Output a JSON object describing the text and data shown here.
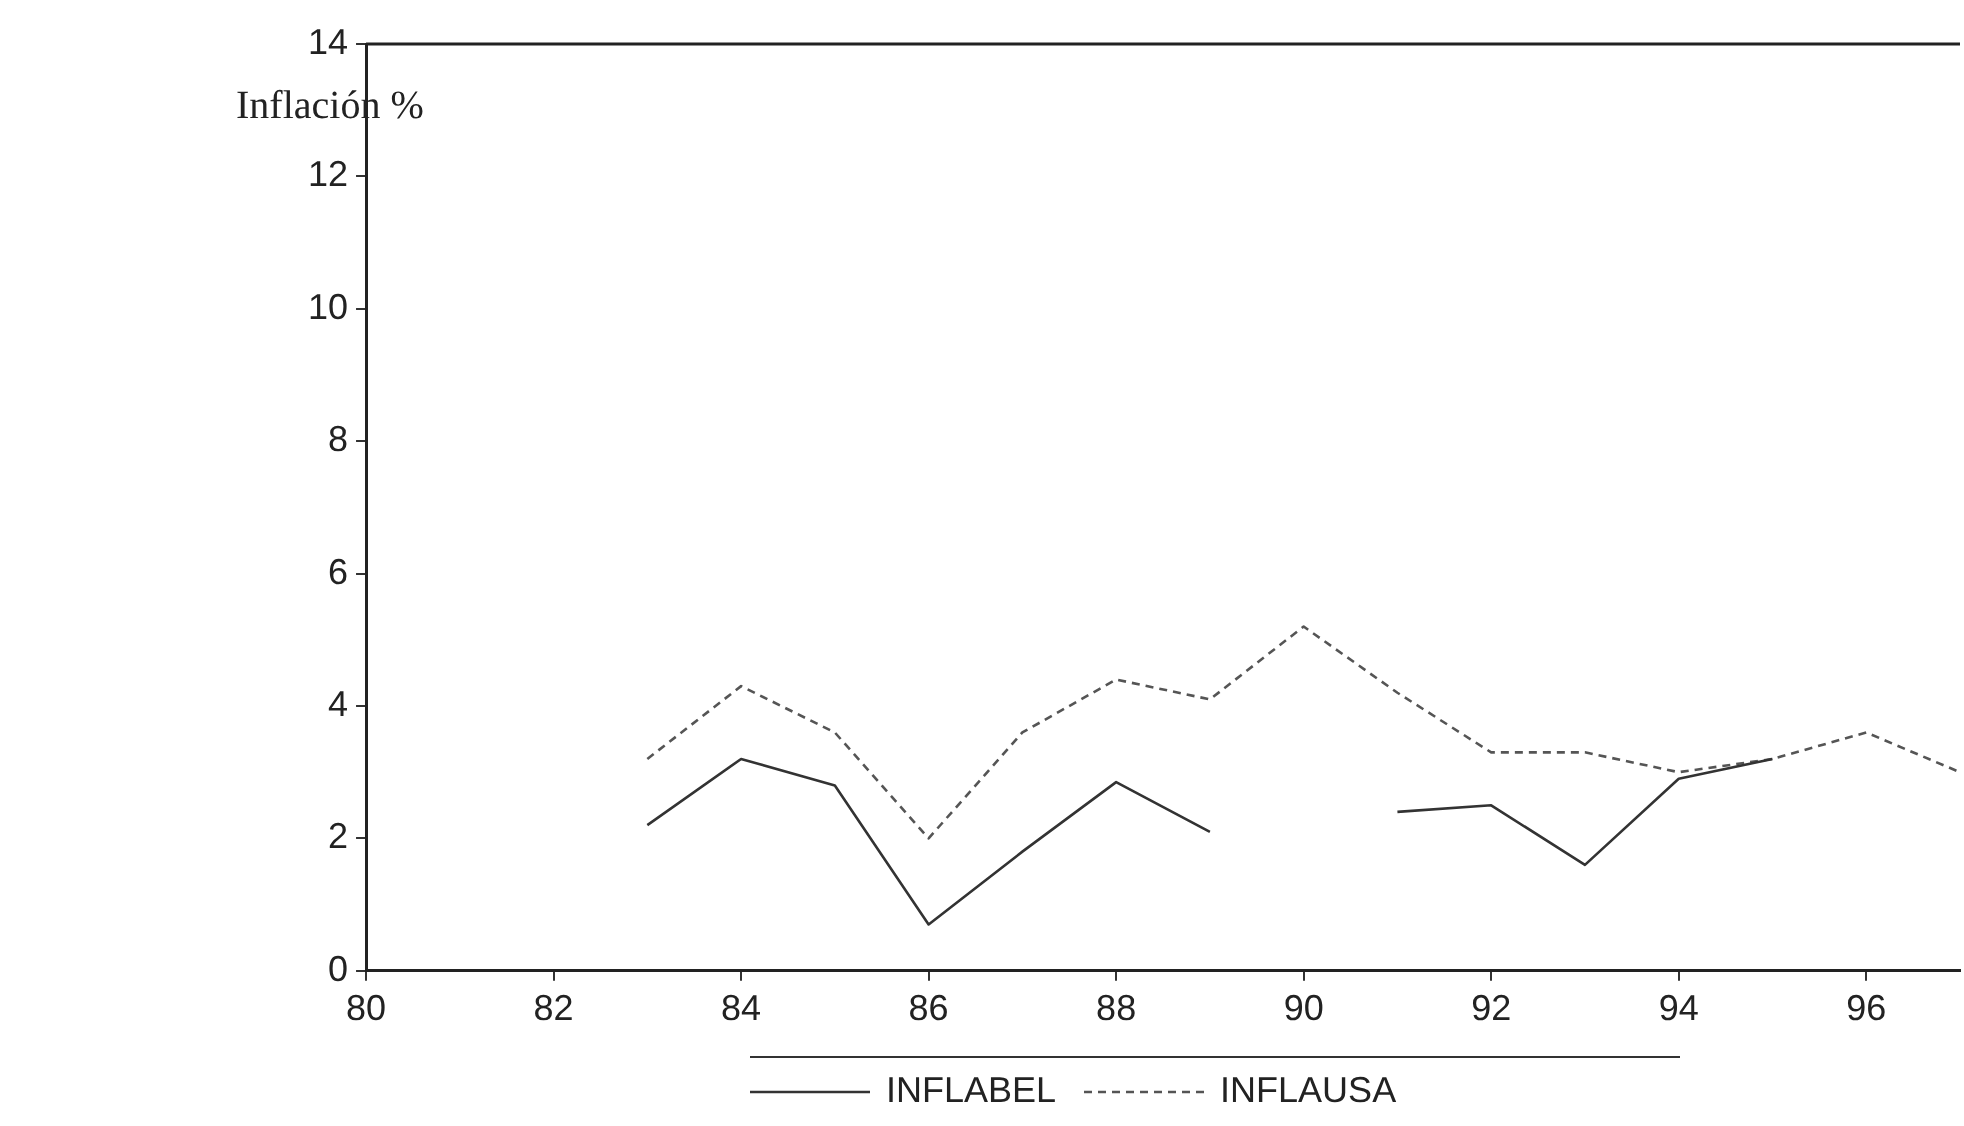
{
  "chart_data": {
    "type": "line",
    "ylabel": "Inflación %",
    "x": [
      83,
      84,
      85,
      86,
      87,
      88,
      89,
      90,
      91,
      92,
      93,
      94,
      95,
      96,
      97
    ],
    "series": [
      {
        "name": "INFLABEL",
        "color": "#333333",
        "line_style": "solid",
        "values": [
          2.2,
          3.2,
          2.8,
          0.7,
          1.8,
          2.85,
          2.1,
          null,
          2.4,
          2.5,
          1.6,
          2.9,
          3.2,
          null,
          null
        ]
      },
      {
        "name": "INFLAUSA",
        "color": "#555555",
        "line_style": "dashed",
        "values": [
          3.2,
          4.3,
          3.6,
          2.0,
          3.6,
          4.4,
          4.1,
          5.2,
          4.2,
          3.3,
          3.3,
          3.0,
          3.2,
          3.6,
          3.0
        ]
      }
    ],
    "xlim": [
      80,
      97
    ],
    "xticks": [
      80,
      82,
      84,
      86,
      88,
      90,
      92,
      94,
      96
    ],
    "ylim": [
      0,
      14
    ],
    "yticks": [
      0,
      2,
      4,
      6,
      8,
      10,
      12,
      14
    ],
    "grid": false,
    "legend": "bottom",
    "marker": "none"
  }
}
